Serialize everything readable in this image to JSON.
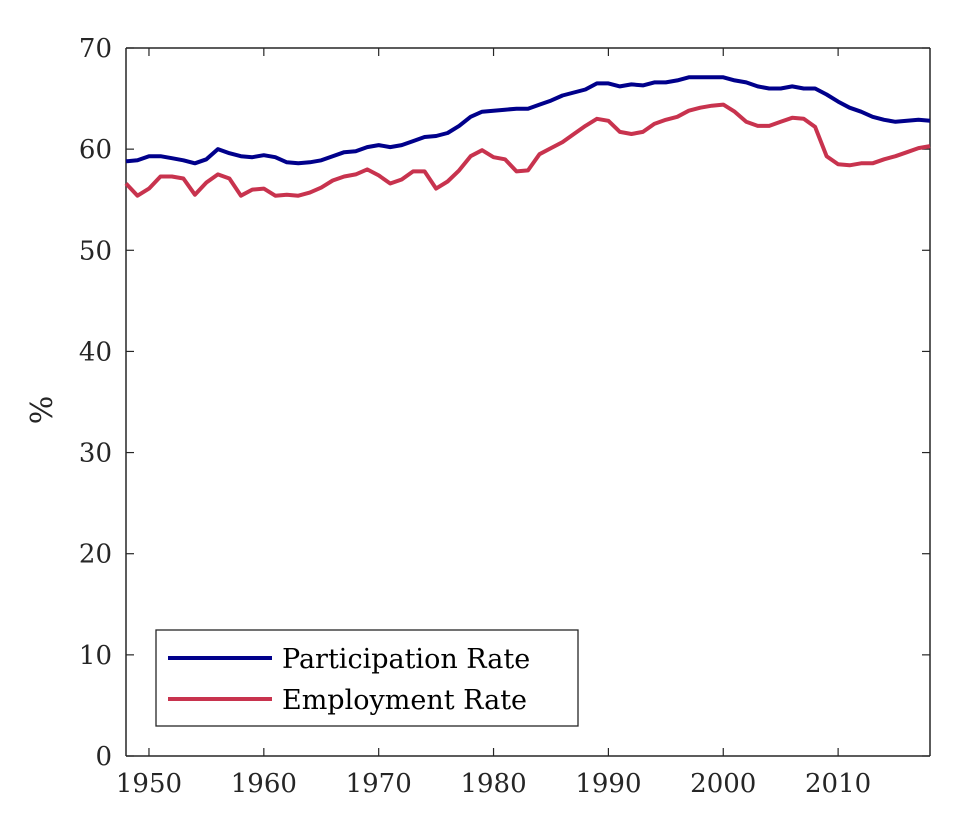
{
  "chart_data": {
    "type": "line",
    "title": "",
    "xlabel": "",
    "ylabel": "%",
    "xlim": [
      1948,
      2018
    ],
    "ylim": [
      0,
      70
    ],
    "xticks": [
      1950,
      1960,
      1970,
      1980,
      1990,
      2000,
      2010
    ],
    "yticks": [
      0,
      10,
      20,
      30,
      40,
      50,
      60,
      70
    ],
    "grid": false,
    "legend_position": "bottom-left",
    "x": [
      1948,
      1949,
      1950,
      1951,
      1952,
      1953,
      1954,
      1955,
      1956,
      1957,
      1958,
      1959,
      1960,
      1961,
      1962,
      1963,
      1964,
      1965,
      1966,
      1967,
      1968,
      1969,
      1970,
      1971,
      1972,
      1973,
      1974,
      1975,
      1976,
      1977,
      1978,
      1979,
      1980,
      1981,
      1982,
      1983,
      1984,
      1985,
      1986,
      1987,
      1988,
      1989,
      1990,
      1991,
      1992,
      1993,
      1994,
      1995,
      1996,
      1997,
      1998,
      1999,
      2000,
      2001,
      2002,
      2003,
      2004,
      2005,
      2006,
      2007,
      2008,
      2009,
      2010,
      2011,
      2012,
      2013,
      2014,
      2015,
      2016,
      2017,
      2018
    ],
    "series": [
      {
        "name": "Participation Rate",
        "color": "#00008B",
        "values": [
          58.8,
          58.9,
          59.3,
          59.3,
          59.1,
          58.9,
          58.6,
          59.0,
          60.0,
          59.6,
          59.3,
          59.2,
          59.4,
          59.2,
          58.7,
          58.6,
          58.7,
          58.9,
          59.3,
          59.7,
          59.8,
          60.2,
          60.4,
          60.2,
          60.4,
          60.8,
          61.2,
          61.3,
          61.6,
          62.3,
          63.2,
          63.7,
          63.8,
          63.9,
          64.0,
          64.0,
          64.4,
          64.8,
          65.3,
          65.6,
          65.9,
          66.5,
          66.5,
          66.2,
          66.4,
          66.3,
          66.6,
          66.6,
          66.8,
          67.1,
          67.1,
          67.1,
          67.1,
          66.8,
          66.6,
          66.2,
          66.0,
          66.0,
          66.2,
          66.0,
          66.0,
          65.4,
          64.7,
          64.1,
          63.7,
          63.2,
          62.9,
          62.7,
          62.8,
          62.9,
          62.8
        ]
      },
      {
        "name": "Employment Rate",
        "color": "#C8334E",
        "values": [
          56.6,
          55.4,
          56.1,
          57.3,
          57.3,
          57.1,
          55.5,
          56.7,
          57.5,
          57.1,
          55.4,
          56.0,
          56.1,
          55.4,
          55.5,
          55.4,
          55.7,
          56.2,
          56.9,
          57.3,
          57.5,
          58.0,
          57.4,
          56.6,
          57.0,
          57.8,
          57.8,
          56.1,
          56.8,
          57.9,
          59.3,
          59.9,
          59.2,
          59.0,
          57.8,
          57.9,
          59.5,
          60.1,
          60.7,
          61.5,
          62.3,
          63.0,
          62.8,
          61.7,
          61.5,
          61.7,
          62.5,
          62.9,
          63.2,
          63.8,
          64.1,
          64.3,
          64.4,
          63.7,
          62.7,
          62.3,
          62.3,
          62.7,
          63.1,
          63.0,
          62.2,
          59.3,
          58.5,
          58.4,
          58.6,
          58.6,
          59.0,
          59.3,
          59.7,
          60.1,
          60.3
        ]
      }
    ]
  }
}
